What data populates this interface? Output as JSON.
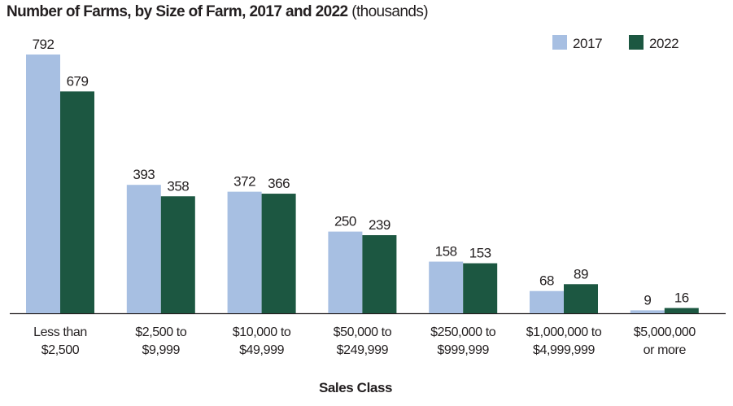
{
  "title": {
    "main": "Number of Farms, by Size of Farm, 2017 and 2022",
    "sub": "(thousands)"
  },
  "chart_data": {
    "type": "bar",
    "title": "Number of Farms, by Size of Farm, 2017 and 2022 (thousands)",
    "xlabel": "Sales Class",
    "ylabel": "",
    "ylim": [
      0,
      800
    ],
    "grid": false,
    "legend_position": "top-right",
    "categories": [
      [
        "Less than",
        "$2,500"
      ],
      [
        "$2,500 to",
        "$9,999"
      ],
      [
        "$10,000 to",
        "$49,999"
      ],
      [
        "$50,000 to",
        "$249,999"
      ],
      [
        "$250,000 to",
        "$999,999"
      ],
      [
        "$1,000,000 to",
        "$4,999,999"
      ],
      [
        "$5,000,000",
        "or more"
      ]
    ],
    "series": [
      {
        "name": "2017",
        "color": "#a7bfe2",
        "values": [
          792,
          393,
          372,
          250,
          158,
          68,
          9
        ]
      },
      {
        "name": "2022",
        "color": "#1c5741",
        "values": [
          679,
          358,
          366,
          239,
          153,
          89,
          16
        ]
      }
    ]
  }
}
